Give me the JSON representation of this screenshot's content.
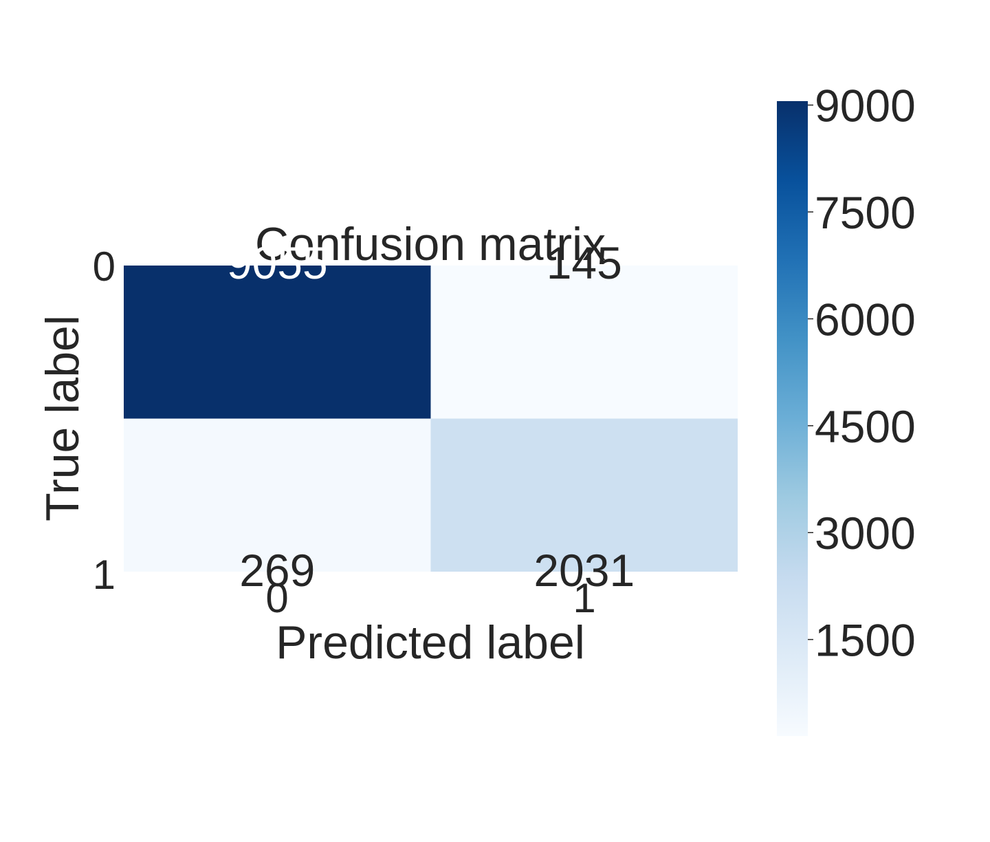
{
  "chart_data": {
    "type": "heatmap",
    "title": "Confusion matrix",
    "xlabel": "Predicted label",
    "ylabel": "True label",
    "x_tick_labels": [
      "0",
      "1"
    ],
    "y_tick_labels": [
      "0",
      "1"
    ],
    "matrix": [
      [
        9055,
        145
      ],
      [
        269,
        2031
      ]
    ],
    "cell_text": [
      [
        "9055",
        "145"
      ],
      [
        "269",
        "2031"
      ]
    ],
    "colormap": "Blues",
    "colormap_stops": [
      "#f7fbff",
      "#deebf7",
      "#c6dbef",
      "#9ecae1",
      "#6baed6",
      "#4292c6",
      "#2171b5",
      "#08519c",
      "#08306b"
    ],
    "color_range": [
      145,
      9055
    ],
    "colorbar_ticks": [
      "9000",
      "7500",
      "6000",
      "4500",
      "3000",
      "1500"
    ],
    "colorbar_tick_values": [
      9000,
      7500,
      6000,
      4500,
      3000,
      1500
    ],
    "grid": false
  }
}
